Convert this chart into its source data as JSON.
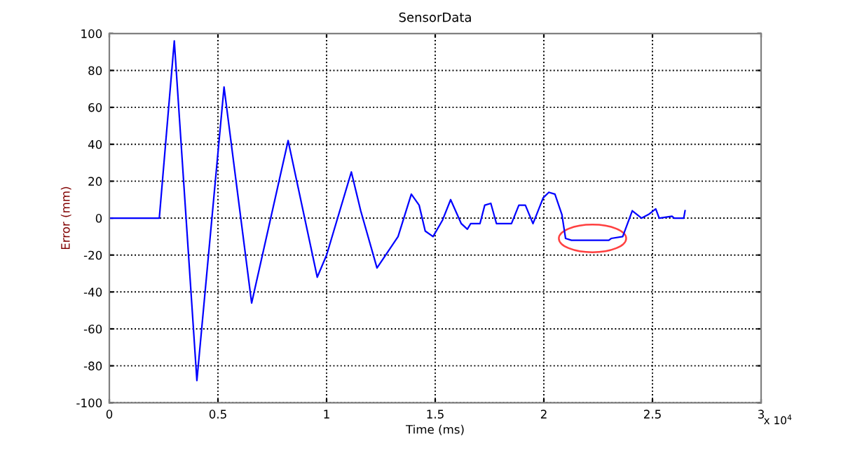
{
  "chart_data": {
    "type": "line",
    "title": "SensorData",
    "xlabel": "Time (ms)",
    "ylabel": "Error (mm)",
    "annotations": [
      "x 10$^{4}$"
    ],
    "x": [
      0,
      0.23,
      0.299,
      0.403,
      0.528,
      0.655,
      0.823,
      0.957,
      1.0,
      1.114,
      1.157,
      1.232,
      1.329,
      1.39,
      1.426,
      1.454,
      1.49,
      1.534,
      1.571,
      1.62,
      1.648,
      1.663,
      1.706,
      1.728,
      1.756,
      1.782,
      1.851,
      1.885,
      1.915,
      1.95,
      1.997,
      2.023,
      2.051,
      2.083,
      2.1,
      2.127,
      2.299,
      2.31,
      2.363,
      2.407,
      2.45,
      2.482,
      2.515,
      2.531,
      2.59,
      2.6,
      2.644,
      2.65
    ],
    "series": [
      {
        "color": "#0000ff",
        "values": [
          0,
          0,
          96,
          -88,
          71,
          -46,
          42,
          -32,
          -20,
          25,
          4,
          -27,
          -10,
          13,
          7,
          -7,
          -10,
          -1,
          10,
          -3,
          -6,
          -3,
          -3,
          7,
          8,
          -3,
          -3,
          7,
          7,
          -3,
          11,
          14,
          13,
          2,
          -11,
          -12,
          -12,
          -11,
          -10,
          4,
          0,
          2,
          5,
          0,
          1,
          0,
          0,
          4
        ]
      }
    ],
    "xlim": [
      0,
      3
    ],
    "xticks": [
      0,
      0.5,
      1,
      1.5,
      2,
      2.5,
      3
    ],
    "ylim": [
      -100,
      100
    ],
    "yticks": [
      -100,
      -80,
      -60,
      -40,
      -20,
      0,
      20,
      40,
      60,
      80,
      100
    ],
    "grid": true,
    "line_style": "solid",
    "marker": "none"
  }
}
